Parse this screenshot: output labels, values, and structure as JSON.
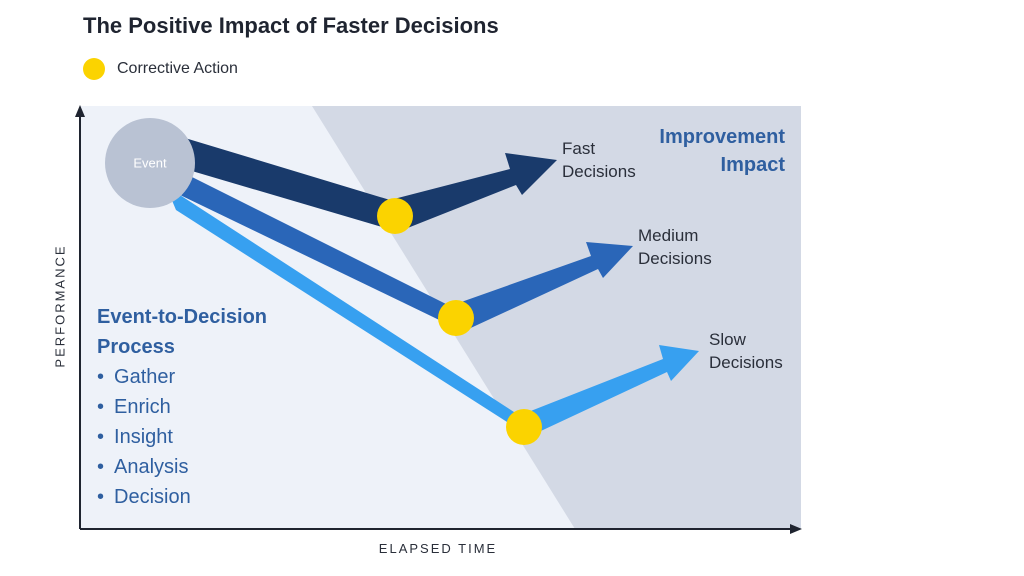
{
  "title": "The Positive Impact of Faster Decisions",
  "legend": {
    "label": "Corrective Action",
    "color": "#fbd300"
  },
  "axes": {
    "y_label": "PERFORMANCE",
    "x_label": "ELAPSED TIME"
  },
  "event_node": {
    "label": "Event"
  },
  "paths": [
    {
      "label_lines": [
        "Fast",
        "Decisions"
      ],
      "color": "#193a6b"
    },
    {
      "label_lines": [
        "Medium",
        "Decisions"
      ],
      "color": "#2a66b8"
    },
    {
      "label_lines": [
        "Slow",
        "Decisions"
      ],
      "color": "#37a0f0"
    }
  ],
  "improvement": {
    "lines": [
      "Improvement",
      "Impact"
    ]
  },
  "process": {
    "title_lines": [
      "Event-to-Decision",
      "Process"
    ],
    "steps": [
      "Gather",
      "Enrich",
      "Insight",
      "Analysis",
      "Decision"
    ]
  },
  "colors": {
    "plot_background": "#eef2f9",
    "impact_region": "#d3d9e5",
    "node": "#b9c2d3"
  }
}
